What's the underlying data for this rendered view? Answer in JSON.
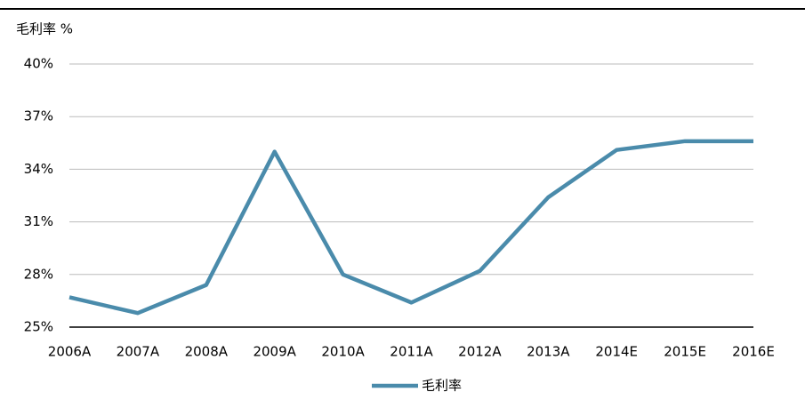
{
  "chart_data": {
    "type": "line",
    "y_label": "毛利率 %",
    "categories": [
      "2006A",
      "2007A",
      "2008A",
      "2009A",
      "2010A",
      "2011A",
      "2012A",
      "2013A",
      "2014E",
      "2015E",
      "2016E"
    ],
    "series": [
      {
        "name": "毛利率",
        "color": "#4a8bab",
        "values": [
          26.7,
          25.8,
          27.4,
          35.0,
          28.0,
          26.4,
          28.2,
          32.4,
          35.1,
          35.6,
          35.6
        ]
      }
    ],
    "ylim": [
      25,
      40
    ],
    "yticks": [
      {
        "value": 25,
        "label": "25%"
      },
      {
        "value": 28,
        "label": "28%"
      },
      {
        "value": 31,
        "label": "31%"
      },
      {
        "value": 34,
        "label": "34%"
      },
      {
        "value": 37,
        "label": "37%"
      },
      {
        "value": 40,
        "label": "40%"
      }
    ],
    "grid": true,
    "legend": "bottom"
  }
}
